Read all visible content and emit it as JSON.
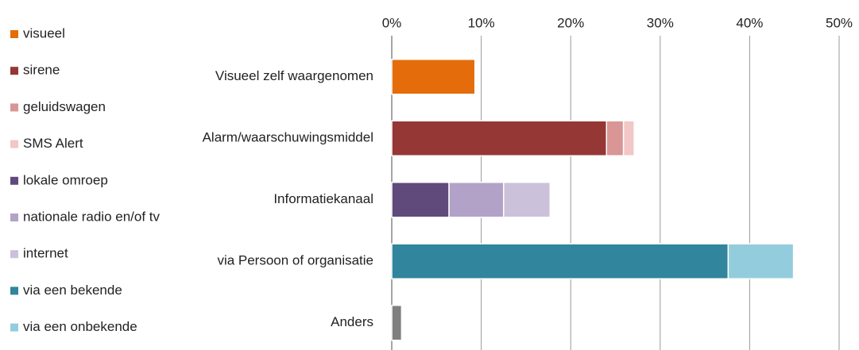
{
  "chart_data": {
    "type": "stacked-barh",
    "categories": [
      "Visueel zelf waargenomen",
      "Alarm/waarschuwingsmiddel",
      "Informatiekanaal",
      "via Persoon of organisatie",
      "Anders"
    ],
    "series": [
      {
        "name": "visueel",
        "color": "#e46c0a",
        "values": [
          9.3,
          null,
          null,
          null,
          null
        ]
      },
      {
        "name": "sirene",
        "color": "#953735",
        "values": [
          null,
          24.0,
          null,
          null,
          null
        ]
      },
      {
        "name": "geluidswagen",
        "color": "#d99694",
        "values": [
          null,
          1.9,
          null,
          null,
          null
        ]
      },
      {
        "name": "SMS Alert",
        "color": "#f2c7c6",
        "values": [
          null,
          1.2,
          null,
          null,
          null
        ]
      },
      {
        "name": "lokale omroep",
        "color": "#604a7b",
        "values": [
          null,
          null,
          6.4,
          null,
          null
        ]
      },
      {
        "name": "nationale radio en/of tv",
        "color": "#b3a2c7",
        "values": [
          null,
          null,
          6.1,
          null,
          null
        ]
      },
      {
        "name": "internet",
        "color": "#ccc1da",
        "values": [
          null,
          null,
          5.2,
          null,
          null
        ]
      },
      {
        "name": "via een bekende",
        "color": "#31859c",
        "values": [
          null,
          null,
          null,
          37.6,
          null
        ]
      },
      {
        "name": "via een onbekende",
        "color": "#93cddd",
        "values": [
          null,
          null,
          null,
          7.3,
          null
        ]
      },
      {
        "name": null,
        "color": "#7f7f7f",
        "values": [
          null,
          null,
          null,
          null,
          1.1
        ]
      }
    ],
    "xlim": [
      0,
      50
    ],
    "xticks": [
      {
        "value": 0,
        "label": "0%"
      },
      {
        "value": 10,
        "label": "10%"
      },
      {
        "value": 20,
        "label": "20%"
      },
      {
        "value": 30,
        "label": "30%"
      },
      {
        "value": 40,
        "label": "40%"
      },
      {
        "value": 50,
        "label": "50%"
      }
    ],
    "grid": true,
    "legend": "left"
  }
}
